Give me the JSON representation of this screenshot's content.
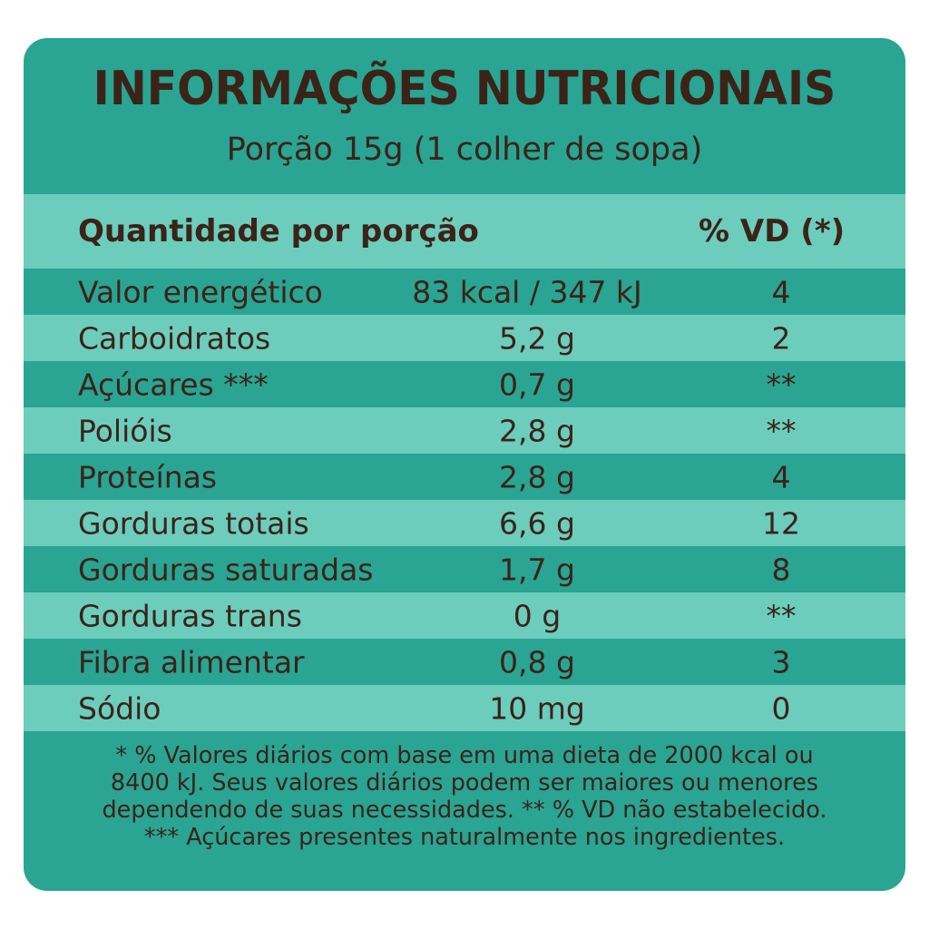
{
  "label": {
    "title": "INFORMAÇÕES NUTRICIONAIS",
    "serving": "Porção 15g (1 colher de sopa)",
    "header": {
      "quantity_label": "Quantidade por porção",
      "dv_label": "% VD (*)"
    },
    "rows": [
      {
        "nutrient": "Valor energético",
        "amount": "83 kcal / 347 kJ",
        "dv": "4"
      },
      {
        "nutrient": "Carboidratos",
        "amount": "5,2 g",
        "dv": "2"
      },
      {
        "nutrient": "Açúcares ***",
        "amount": "0,7 g",
        "dv": "**"
      },
      {
        "nutrient": "Polióis",
        "amount": "2,8 g",
        "dv": "**"
      },
      {
        "nutrient": "Proteínas",
        "amount": "2,8 g",
        "dv": "4"
      },
      {
        "nutrient": "Gorduras totais",
        "amount": "6,6 g",
        "dv": "12"
      },
      {
        "nutrient": "Gorduras saturadas",
        "amount": "1,7 g",
        "dv": "8"
      },
      {
        "nutrient": "Gorduras trans",
        "amount": "0 g",
        "dv": "**"
      },
      {
        "nutrient": "Fibra alimentar",
        "amount": "0,8 g",
        "dv": "3"
      },
      {
        "nutrient": "Sódio",
        "amount": "10 mg",
        "dv": "0"
      }
    ],
    "footnote_lines": [
      "* % Valores diários com base em uma dieta de 2000 kcal ou",
      "8400 kJ. Seus valores diários podem ser maiores ou menores",
      "dependendo de suas necessidades. ** % VD não estabelecido.",
      "*** Açúcares presentes naturalmente nos ingredientes."
    ],
    "colors": {
      "background": "#2aa493",
      "stripe": "#6ccdbd",
      "text": "#3b2318"
    }
  }
}
